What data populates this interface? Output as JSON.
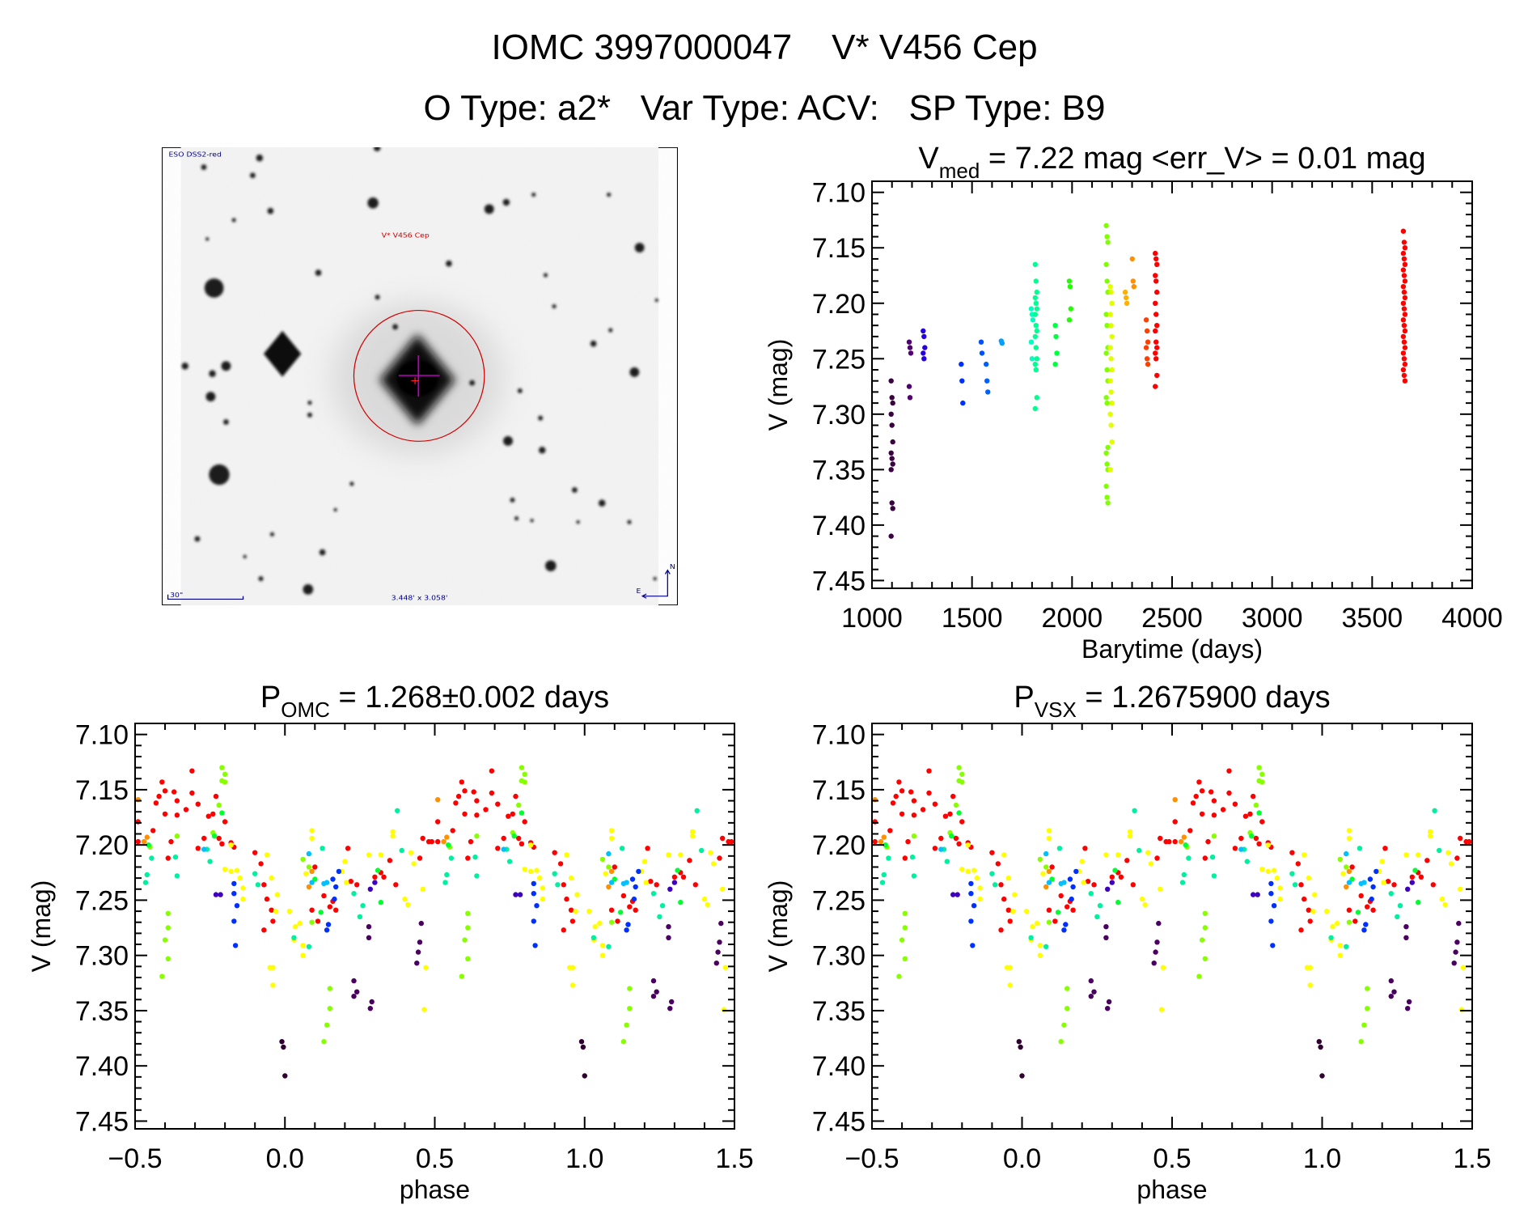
{
  "header": {
    "title_line1": "IOMC 3997000047    V* V456 Cep",
    "title_line2": "O Type: a2*   Var Type: ACV:   SP Type: B9"
  },
  "image": {
    "survey": "ESO DSS2-red",
    "target_label": "V* V456 Cep",
    "scale_label": "30\"",
    "fov": "3.448' x 3.058'",
    "compass_n": "N",
    "compass_e": "E"
  },
  "chart_data": [
    {
      "type": "scatter",
      "title": {
        "main": "V",
        "sub": "med",
        "rest": " =  7.22  mag  <err_V>  =  0.01  mag"
      },
      "xlabel": "Barytime (days)",
      "ylabel": "V (mag)",
      "xlim": [
        1000,
        4000
      ],
      "ylim": [
        7.09,
        7.457
      ],
      "y_inverted": true,
      "grid": false,
      "xticks": [
        1000,
        1500,
        2000,
        2500,
        3000,
        3500,
        4000
      ],
      "xtick_labels": [
        "1000",
        "1500",
        "2000",
        "2500",
        "3000",
        "3500",
        "4000"
      ],
      "x_minor_step": 100,
      "yticks": [
        7.1,
        7.15,
        7.2,
        7.25,
        7.3,
        7.35,
        7.4,
        7.45
      ],
      "ytick_labels": [
        "7.10",
        "7.15",
        "7.20",
        "7.25",
        "7.30",
        "7.35",
        "7.40",
        "7.45"
      ],
      "y_minor_step": 0.01,
      "series": [
        {
          "color": "#3a0040",
          "x": 1100,
          "y": [
            7.27,
            7.285,
            7.29,
            7.3,
            7.31,
            7.325,
            7.335,
            7.34,
            7.345,
            7.35,
            7.38,
            7.385,
            7.41
          ]
        },
        {
          "color": "#500070",
          "x": 1190,
          "y": [
            7.235,
            7.24,
            7.245,
            7.275,
            7.285
          ]
        },
        {
          "color": "#2800e0",
          "x": 1260,
          "y": [
            7.225,
            7.23,
            7.24,
            7.245,
            7.25
          ]
        },
        {
          "color": "#0030ff",
          "x": 1450,
          "y": [
            7.255,
            7.27,
            7.29
          ]
        },
        {
          "color": "#0050ff",
          "x": 1550,
          "y": [
            7.235,
            7.245
          ]
        },
        {
          "color": "#0060ff",
          "x": 1575,
          "y": [
            7.255,
            7.27,
            7.28
          ]
        },
        {
          "color": "#00a0ff",
          "x": 1650,
          "y": [
            7.234,
            7.236
          ]
        },
        {
          "color": "#00ffc0",
          "x": 1800,
          "y": [
            7.205,
            7.21,
            7.215,
            7.235,
            7.25
          ]
        },
        {
          "color": "#00ff90",
          "x": 1820,
          "y": [
            7.165,
            7.18,
            7.19,
            7.195,
            7.2,
            7.205,
            7.21,
            7.22,
            7.225,
            7.23,
            7.24,
            7.25,
            7.255,
            7.26,
            7.285,
            7.295
          ]
        },
        {
          "color": "#00ff40",
          "x": 1920,
          "y": [
            7.22,
            7.23,
            7.245,
            7.255
          ]
        },
        {
          "color": "#20ff00",
          "x": 1990,
          "y": [
            7.18,
            7.185,
            7.205,
            7.215
          ]
        },
        {
          "color": "#80ff00",
          "x": 2175,
          "y": [
            7.13,
            7.14,
            7.145,
            7.165,
            7.18,
            7.19,
            7.21,
            7.22,
            7.24,
            7.245,
            7.26,
            7.27,
            7.285,
            7.29,
            7.33,
            7.335,
            7.345,
            7.35,
            7.365,
            7.375,
            7.38
          ]
        },
        {
          "color": "#e0ff00",
          "x": 2195,
          "y": [
            7.185,
            7.19,
            7.2,
            7.21,
            7.22,
            7.23,
            7.24,
            7.25,
            7.26,
            7.27,
            7.28,
            7.29,
            7.3,
            7.31,
            7.325,
            7.35
          ]
        },
        {
          "color": "#ffb000",
          "x": 2270,
          "y": [
            7.19,
            7.195,
            7.2
          ]
        },
        {
          "color": "#ff9000",
          "x": 2305,
          "y": [
            7.16,
            7.18,
            7.185
          ]
        },
        {
          "color": "#ff4000",
          "x": 2375,
          "y": [
            7.215,
            7.225,
            7.235,
            7.24,
            7.25,
            7.255
          ]
        },
        {
          "color": "#ff0000",
          "x": 2420,
          "y": [
            7.155,
            7.16,
            7.165,
            7.175,
            7.18,
            7.19,
            7.2,
            7.21,
            7.22,
            7.225,
            7.235,
            7.24,
            7.245,
            7.25,
            7.265,
            7.275
          ]
        },
        {
          "color": "#ff0000",
          "x": 3660,
          "y": [
            7.135,
            7.145,
            7.15,
            7.155,
            7.16,
            7.165,
            7.17,
            7.175,
            7.18,
            7.185,
            7.19,
            7.195,
            7.2,
            7.205,
            7.21,
            7.215,
            7.22,
            7.225,
            7.23,
            7.235,
            7.24,
            7.245,
            7.25,
            7.255,
            7.26,
            7.265,
            7.27
          ]
        }
      ]
    },
    {
      "type": "scatter",
      "title": {
        "main": "P",
        "sub": "OMC",
        "rest": " =  1.268±0.002  days"
      },
      "xlabel": "phase",
      "ylabel": "V (mag)",
      "xlim": [
        -0.5,
        1.5
      ],
      "ylim": [
        7.09,
        7.457
      ],
      "y_inverted": true,
      "grid": false,
      "xticks": [
        -0.5,
        0.0,
        0.5,
        1.0,
        1.5
      ],
      "xtick_labels": [
        "−0.5",
        "0.0",
        "0.5",
        "1.0",
        "1.5"
      ],
      "x_minor_step": 0.1,
      "yticks": [
        7.1,
        7.15,
        7.2,
        7.25,
        7.3,
        7.35,
        7.4,
        7.45
      ],
      "ytick_labels": [
        "7.10",
        "7.15",
        "7.20",
        "7.25",
        "7.30",
        "7.35",
        "7.40",
        "7.45"
      ],
      "y_minor_step": 0.01,
      "phase_repeat": true,
      "series": "PHASE_POINTS"
    },
    {
      "type": "scatter",
      "title": {
        "main": "P",
        "sub": "VSX",
        "rest": " =  1.2675900  days"
      },
      "xlabel": "phase",
      "ylabel": "V (mag)",
      "xlim": [
        -0.5,
        1.5
      ],
      "ylim": [
        7.09,
        7.457
      ],
      "y_inverted": true,
      "grid": false,
      "xticks": [
        -0.5,
        0.0,
        0.5,
        1.0,
        1.5
      ],
      "xtick_labels": [
        "−0.5",
        "0.0",
        "0.5",
        "1.0",
        "1.5"
      ],
      "x_minor_step": 0.1,
      "yticks": [
        7.1,
        7.15,
        7.2,
        7.25,
        7.3,
        7.35,
        7.4,
        7.45
      ],
      "ytick_labels": [
        "7.10",
        "7.15",
        "7.20",
        "7.25",
        "7.30",
        "7.35",
        "7.40",
        "7.45"
      ],
      "y_minor_step": 0.01,
      "phase_repeat": true,
      "series": "PHASE_POINTS"
    }
  ],
  "phase_points": [
    {
      "color": "#ff0000",
      "points": [
        [
          -0.49,
          7.197
        ],
        [
          -0.49,
          7.179
        ],
        [
          -0.44,
          7.187
        ],
        [
          -0.43,
          7.162
        ],
        [
          -0.42,
          7.156
        ],
        [
          -0.41,
          7.143
        ],
        [
          -0.4,
          7.151
        ],
        [
          -0.4,
          7.172
        ],
        [
          -0.39,
          7.212
        ],
        [
          -0.38,
          7.197
        ],
        [
          -0.37,
          7.152
        ],
        [
          -0.36,
          7.173
        ],
        [
          -0.36,
          7.16
        ],
        [
          -0.33,
          7.168
        ],
        [
          -0.31,
          7.153
        ],
        [
          -0.31,
          7.133
        ],
        [
          -0.29,
          7.163
        ],
        [
          -0.29,
          7.203
        ],
        [
          -0.27,
          7.194
        ],
        [
          -0.255,
          7.174
        ],
        [
          -0.24,
          7.172
        ],
        [
          -0.23,
          7.156
        ],
        [
          -0.22,
          7.194
        ],
        [
          -0.21,
          7.199
        ],
        [
          -0.2,
          7.179
        ],
        [
          -0.18,
          7.198
        ],
        [
          -0.17,
          7.202
        ],
        [
          -0.1,
          7.207
        ],
        [
          -0.08,
          7.217
        ],
        [
          -0.07,
          7.236
        ],
        [
          -0.06,
          7.249
        ],
        [
          -0.045,
          7.259
        ],
        [
          -0.04,
          7.269
        ],
        [
          -0.07,
          7.277
        ],
        [
          0.1,
          7.22
        ],
        [
          0.09,
          7.259
        ],
        [
          0.11,
          7.269
        ],
        [
          0.13,
          7.246
        ],
        [
          0.15,
          7.256
        ],
        [
          0.16,
          7.251
        ],
        [
          0.17,
          7.259
        ],
        [
          0.21,
          7.203
        ],
        [
          0.22,
          7.233
        ],
        [
          0.24,
          7.236
        ],
        [
          0.3,
          7.229
        ],
        [
          0.32,
          7.225
        ],
        [
          0.33,
          7.229
        ],
        [
          0.35,
          7.214
        ],
        [
          0.37,
          7.236
        ],
        [
          0.45,
          7.212
        ],
        [
          0.46,
          7.194
        ],
        [
          0.48,
          7.197
        ],
        [
          0.49,
          7.197
        ]
      ]
    },
    {
      "color": "#ff9000",
      "points": [
        [
          -0.49,
          7.159
        ],
        [
          -0.46,
          7.193
        ],
        [
          -0.47,
          7.197
        ],
        [
          0.09,
          7.224
        ],
        [
          0.08,
          7.238
        ]
      ]
    },
    {
      "color": "#88ff00",
      "points": [
        [
          -0.21,
          7.13
        ],
        [
          -0.2,
          7.136
        ],
        [
          -0.21,
          7.142
        ],
        [
          -0.2,
          7.143
        ],
        [
          -0.39,
          7.262
        ],
        [
          -0.39,
          7.275
        ],
        [
          -0.4,
          7.286
        ],
        [
          -0.39,
          7.303
        ],
        [
          -0.41,
          7.319
        ],
        [
          -0.36,
          7.192
        ],
        [
          -0.45,
          7.202
        ],
        [
          0.06,
          7.213
        ],
        [
          0.08,
          7.22
        ],
        [
          0.09,
          7.27
        ],
        [
          0.15,
          7.33
        ],
        [
          0.15,
          7.348
        ],
        [
          0.14,
          7.363
        ],
        [
          0.13,
          7.378
        ],
        [
          -0.22,
          7.164
        ],
        [
          -0.24,
          7.189
        ]
      ]
    },
    {
      "color": "#ffff00",
      "points": [
        [
          -0.2,
          7.222
        ],
        [
          -0.18,
          7.224
        ],
        [
          -0.16,
          7.223
        ],
        [
          -0.15,
          7.23
        ],
        [
          -0.14,
          7.239
        ],
        [
          -0.14,
          7.249
        ],
        [
          -0.18,
          7.2
        ],
        [
          -0.06,
          7.209
        ],
        [
          -0.045,
          7.23
        ],
        [
          -0.025,
          7.245
        ],
        [
          -0.03,
          7.26
        ],
        [
          -0.05,
          7.311
        ],
        [
          -0.04,
          7.311
        ],
        [
          -0.04,
          7.327
        ],
        [
          0.015,
          7.26
        ],
        [
          0.035,
          7.274
        ],
        [
          0.03,
          7.286
        ],
        [
          0.05,
          7.271
        ],
        [
          0.06,
          7.291
        ],
        [
          0.06,
          7.3
        ],
        [
          0.09,
          7.194
        ],
        [
          0.09,
          7.187
        ],
        [
          0.07,
          7.226
        ],
        [
          0.19,
          7.224
        ],
        [
          0.2,
          7.215
        ],
        [
          0.205,
          7.234
        ],
        [
          0.28,
          7.209
        ],
        [
          0.32,
          7.209
        ],
        [
          0.36,
          7.192
        ],
        [
          0.36,
          7.188
        ],
        [
          0.4,
          7.249
        ],
        [
          0.41,
          7.254
        ],
        [
          0.42,
          7.207
        ],
        [
          0.43,
          7.217
        ],
        [
          0.46,
          7.24
        ],
        [
          0.47,
          7.311
        ],
        [
          0.465,
          7.349
        ]
      ]
    },
    {
      "color": "#00ff30",
      "points": [
        [
          -0.455,
          7.2
        ],
        [
          -0.21,
          7.171
        ],
        [
          -0.235,
          7.192
        ],
        [
          0.31,
          7.223
        ],
        [
          0.32,
          7.252
        ],
        [
          0.12,
          7.261
        ],
        [
          0.1,
          7.231
        ]
      ]
    },
    {
      "color": "#00f0a0",
      "points": [
        [
          -0.46,
          7.227
        ],
        [
          -0.465,
          7.234
        ],
        [
          -0.445,
          7.212
        ],
        [
          -0.26,
          7.204
        ],
        [
          -0.25,
          7.215
        ],
        [
          -0.09,
          7.236
        ],
        [
          -0.1,
          7.226
        ],
        [
          0.03,
          7.284
        ],
        [
          0.08,
          7.292
        ],
        [
          0.25,
          7.265
        ],
        [
          0.26,
          7.255
        ],
        [
          0.375,
          7.169
        ],
        [
          0.39,
          7.205
        ],
        [
          0.23,
          7.244
        ],
        [
          -0.36,
          7.228
        ],
        [
          -0.365,
          7.211
        ],
        [
          0.125,
          7.203
        ]
      ]
    },
    {
      "color": "#00c0ff",
      "points": [
        [
          0.09,
          7.234
        ],
        [
          0.13,
          7.235
        ],
        [
          0.14,
          7.234
        ],
        [
          -0.27,
          7.204
        ],
        [
          0.08,
          7.208
        ]
      ]
    },
    {
      "color": "#0030ff",
      "points": [
        [
          -0.17,
          7.235
        ],
        [
          -0.17,
          7.244
        ],
        [
          -0.16,
          7.255
        ],
        [
          -0.17,
          7.269
        ],
        [
          -0.165,
          7.291
        ],
        [
          0.14,
          7.277
        ],
        [
          0.145,
          7.272
        ],
        [
          0.16,
          7.231
        ],
        [
          0.17,
          7.238
        ],
        [
          0.18,
          7.224
        ],
        [
          0.165,
          7.249
        ]
      ]
    },
    {
      "color": "#4000c0",
      "points": [
        [
          -0.23,
          7.245
        ],
        [
          -0.215,
          7.245
        ],
        [
          0.285,
          7.24
        ],
        [
          0.3,
          7.234
        ]
      ]
    },
    {
      "color": "#4a0060",
      "points": [
        [
          0.28,
          7.274
        ],
        [
          0.28,
          7.284
        ],
        [
          0.23,
          7.323
        ],
        [
          0.24,
          7.333
        ],
        [
          0.23,
          7.337
        ],
        [
          0.285,
          7.348
        ],
        [
          0.29,
          7.342
        ],
        [
          0.455,
          7.271
        ],
        [
          0.45,
          7.288
        ],
        [
          0.445,
          7.297
        ],
        [
          0.44,
          7.307
        ]
      ]
    },
    {
      "color": "#300030",
      "points": [
        [
          -0.01,
          7.378
        ],
        [
          -0.005,
          7.383
        ],
        [
          0.0,
          7.409
        ]
      ]
    }
  ]
}
